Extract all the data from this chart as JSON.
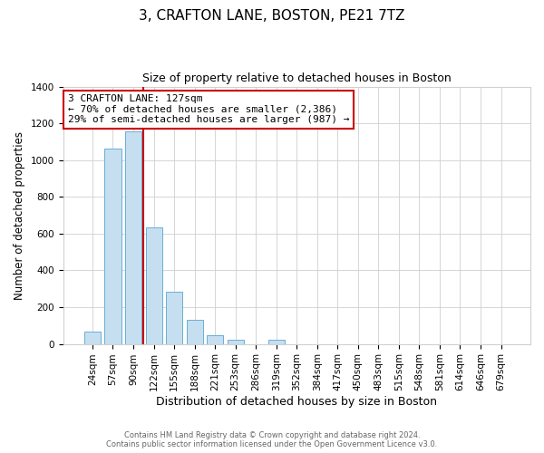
{
  "title": "3, CRAFTON LANE, BOSTON, PE21 7TZ",
  "subtitle": "Size of property relative to detached houses in Boston",
  "xlabel": "Distribution of detached houses by size in Boston",
  "ylabel": "Number of detached properties",
  "categories": [
    "24sqm",
    "57sqm",
    "90sqm",
    "122sqm",
    "155sqm",
    "188sqm",
    "221sqm",
    "253sqm",
    "286sqm",
    "319sqm",
    "352sqm",
    "384sqm",
    "417sqm",
    "450sqm",
    "483sqm",
    "515sqm",
    "548sqm",
    "581sqm",
    "614sqm",
    "646sqm",
    "679sqm"
  ],
  "values": [
    65,
    1065,
    1155,
    635,
    285,
    130,
    48,
    22,
    0,
    22,
    0,
    0,
    0,
    0,
    0,
    0,
    0,
    0,
    0,
    0,
    0
  ],
  "bar_color": "#c5dff0",
  "bar_edge_color": "#6aaed6",
  "vline_color": "#cc0000",
  "annotation_title": "3 CRAFTON LANE: 127sqm",
  "annotation_line1": "← 70% of detached houses are smaller (2,386)",
  "annotation_line2": "29% of semi-detached houses are larger (987) →",
  "annotation_box_color": "#ffffff",
  "annotation_box_edge_color": "#cc0000",
  "ylim": [
    0,
    1400
  ],
  "yticks": [
    0,
    200,
    400,
    600,
    800,
    1000,
    1200,
    1400
  ],
  "footer_line1": "Contains HM Land Registry data © Crown copyright and database right 2024.",
  "footer_line2": "Contains public sector information licensed under the Open Government Licence v3.0.",
  "background_color": "#ffffff",
  "title_fontsize": 11,
  "subtitle_fontsize": 9,
  "xlabel_fontsize": 9,
  "ylabel_fontsize": 8.5,
  "annotation_fontsize": 8,
  "tick_fontsize": 7.5
}
